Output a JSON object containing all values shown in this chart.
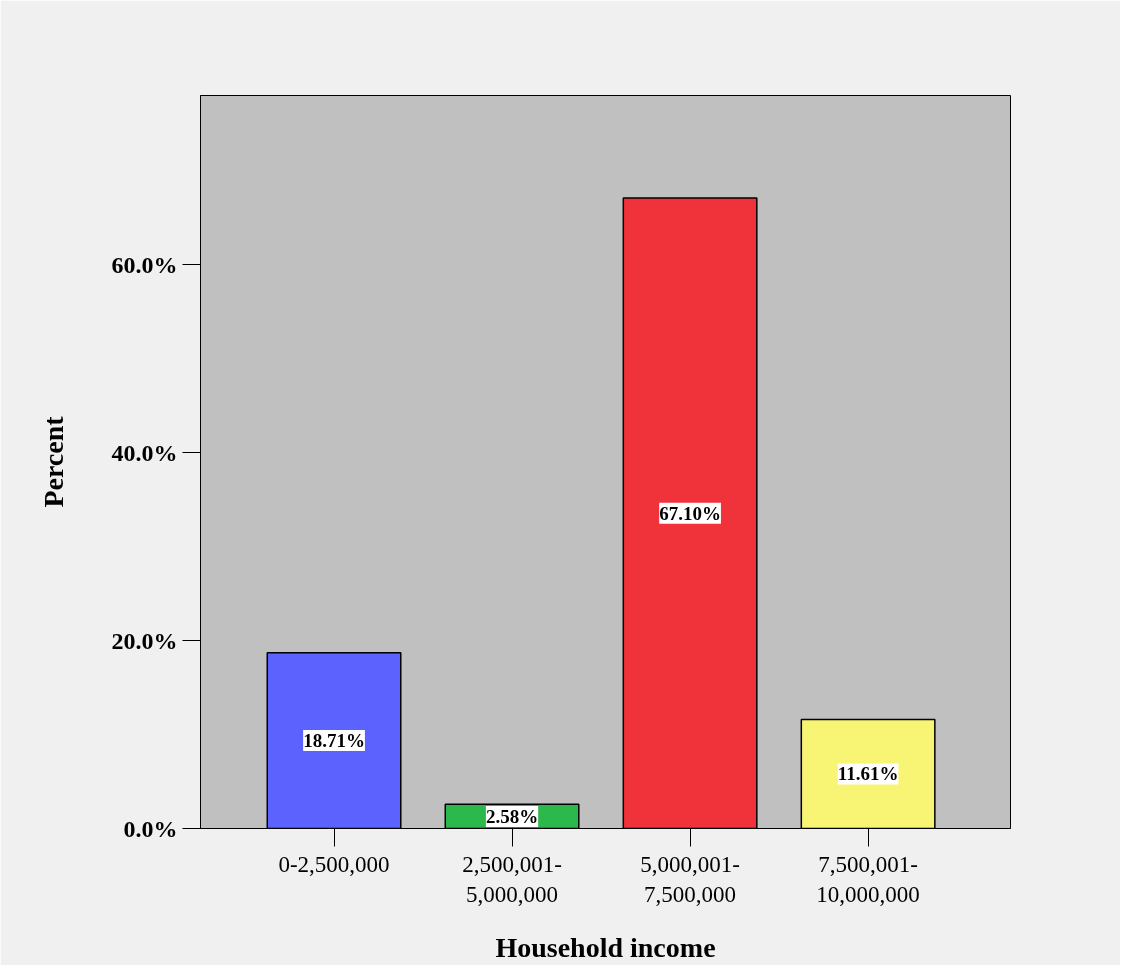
{
  "chart_data": {
    "type": "bar",
    "xlabel": "Household income",
    "ylabel": "Percent",
    "categories": [
      "0-2,500,000",
      "2,500,001-\n5,000,000",
      "5,000,001-\n7,500,000",
      "7,500,001-\n10,000,000"
    ],
    "values": [
      18.71,
      2.58,
      67.1,
      11.61
    ],
    "value_labels": [
      "18.71%",
      "2.58%",
      "67.10%",
      "11.61%"
    ],
    "colors": [
      "#5b62fe",
      "#2db84b",
      "#f0323a",
      "#f9f574"
    ],
    "ylim": [
      0,
      78
    ],
    "yticks": [
      {
        "value": 0,
        "label": "0.0%"
      },
      {
        "value": 20,
        "label": "20.0%"
      },
      {
        "value": 40,
        "label": "40.0%"
      },
      {
        "value": 60,
        "label": "60.0%"
      }
    ],
    "grid": false
  }
}
